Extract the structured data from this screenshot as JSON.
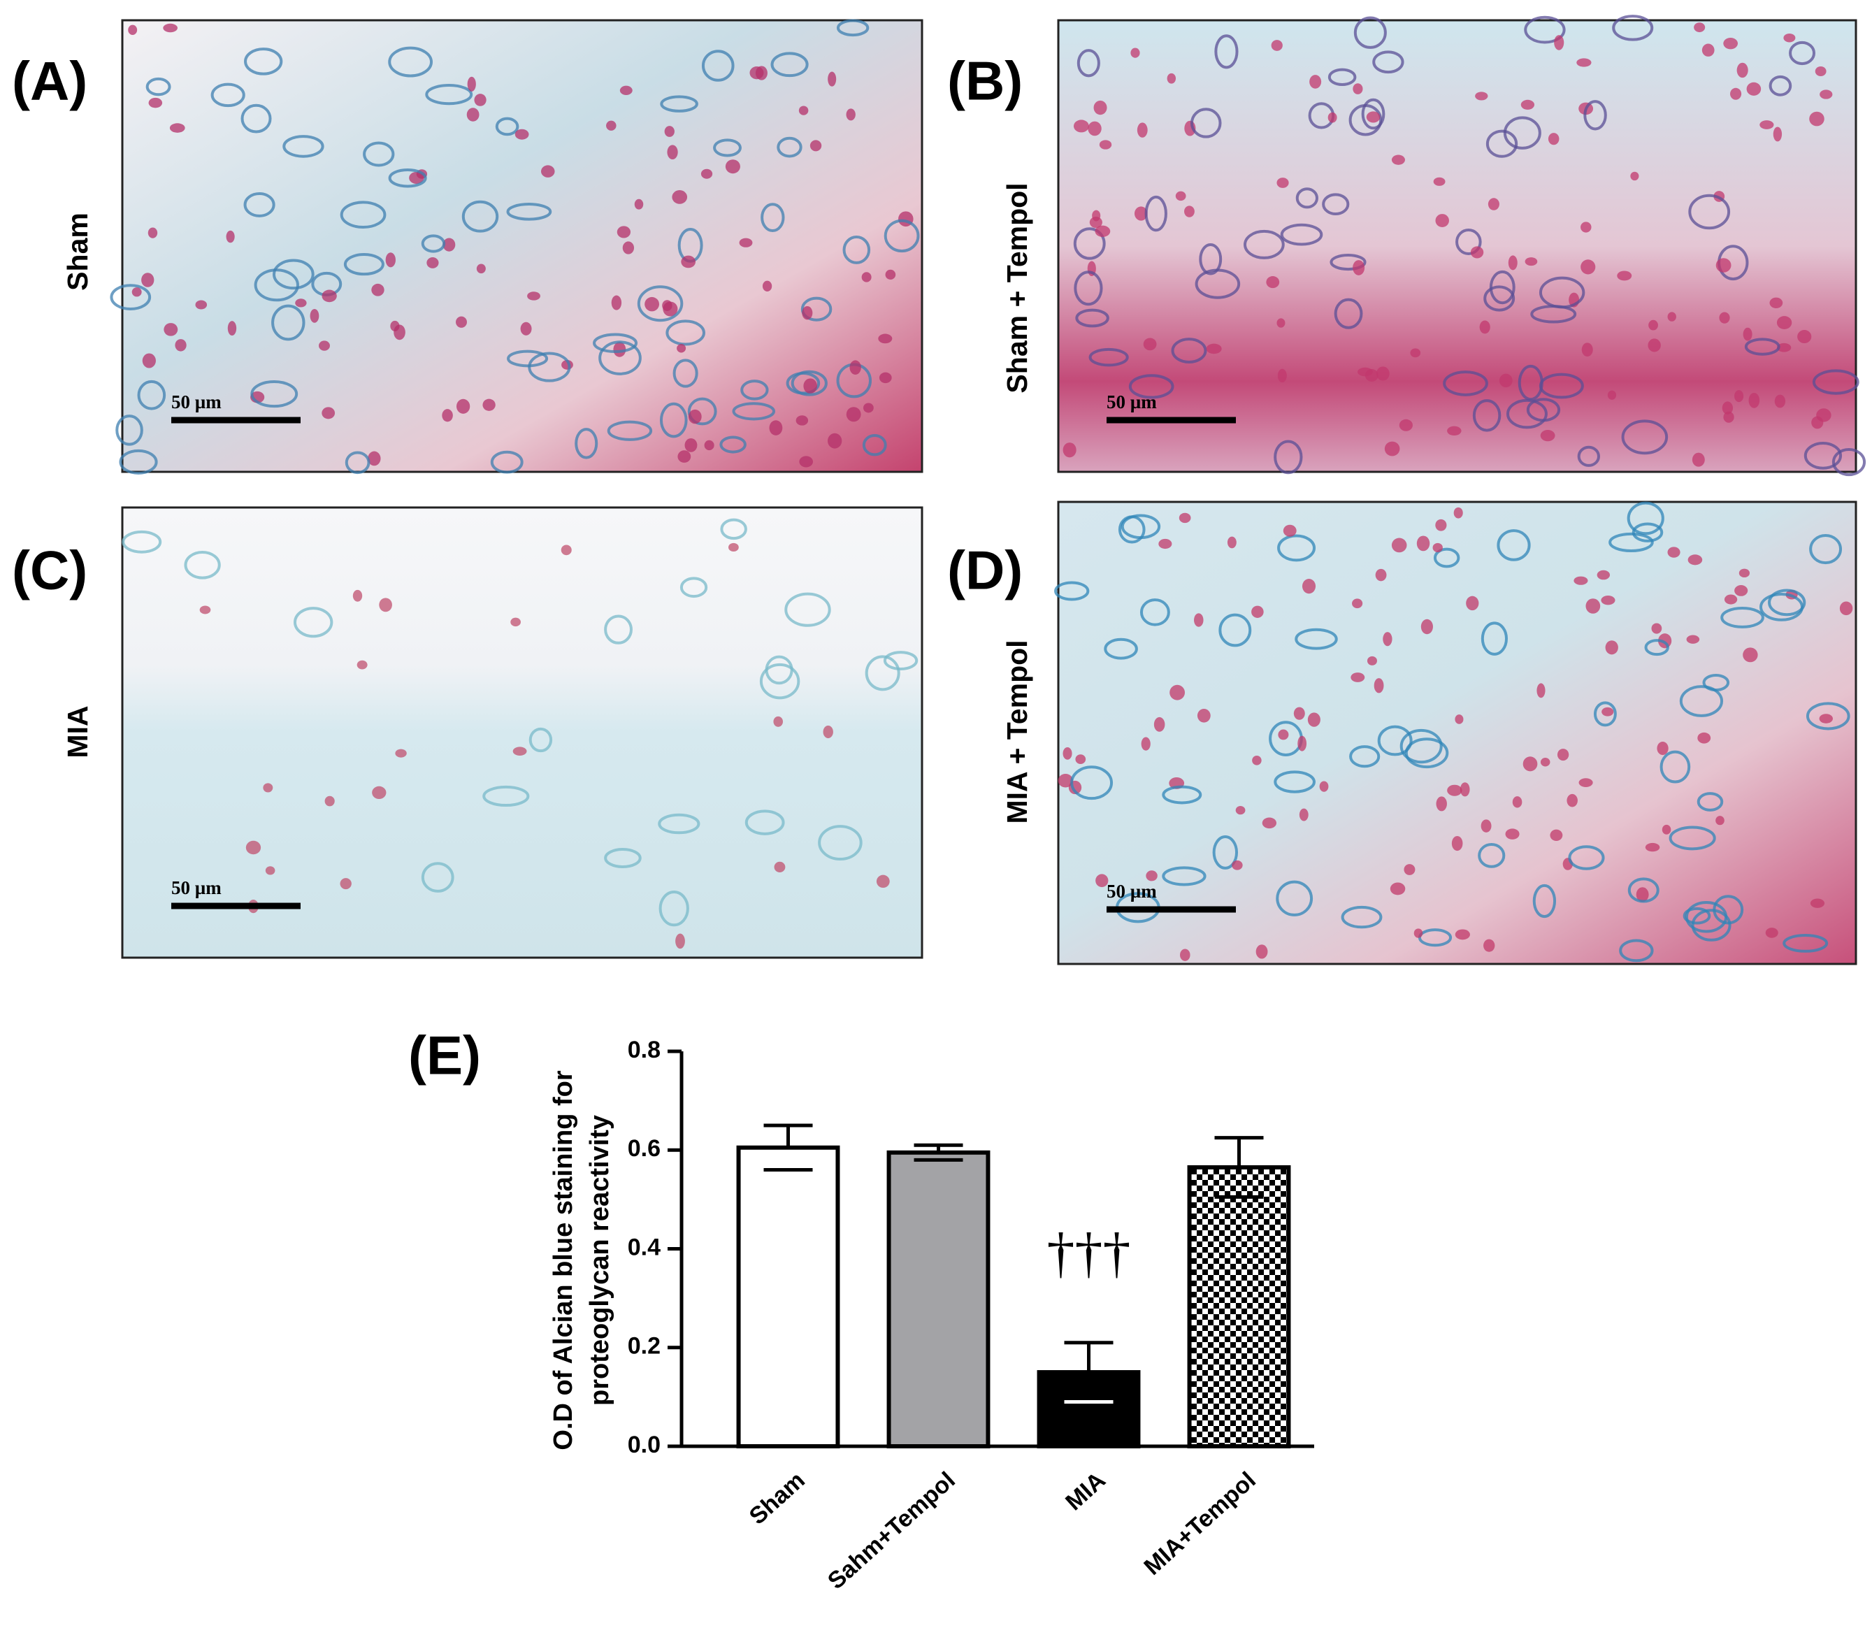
{
  "panels": [
    {
      "letter": "(A)",
      "label": "Sham",
      "scale": "50 µm"
    },
    {
      "letter": "(B)",
      "label": "Sham + Tempol",
      "scale": "50 µm"
    },
    {
      "letter": "(C)",
      "label": "MIA",
      "scale": "50 µm"
    },
    {
      "letter": "(D)",
      "label": "MIA + Tempol",
      "scale": "50 µm"
    }
  ],
  "chart_data": {
    "type": "bar",
    "letter": "(E)",
    "y_label": [
      "O.D of Alcian blue staining for",
      "proteoglycan reactivity"
    ],
    "categories": [
      "Sham",
      "Sahm+Tempol",
      "MIA",
      "MIA+Tempol"
    ],
    "values": [
      0.605,
      0.595,
      0.15,
      0.565
    ],
    "errors": [
      0.045,
      0.015,
      0.06,
      0.06
    ],
    "colors": [
      "#ffffff",
      "#a3a3a6",
      "#000000",
      "#000000"
    ],
    "patterns": [
      "solid",
      "solid",
      "solid",
      "checkerboard"
    ],
    "annotations": [
      {
        "text": "†††",
        "category": "MIA"
      }
    ],
    "ylim": [
      0,
      0.8
    ],
    "yticks": [
      {
        "value": 0,
        "label": "0.0"
      },
      0.2,
      0.4,
      0.6,
      0.8
    ],
    "grid": false
  }
}
